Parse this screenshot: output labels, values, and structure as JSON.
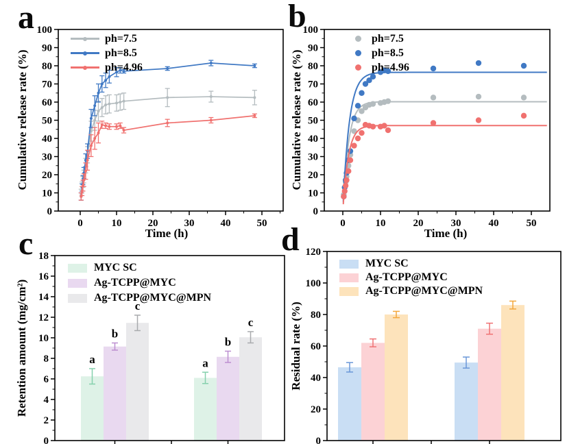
{
  "figure": {
    "background": "#ffffff"
  },
  "chart_data": [
    {
      "panel": "a",
      "type": "line",
      "xlabel": "Time (h)",
      "ylabel": "Cumulative release rate (%)",
      "xlim": [
        0,
        50
      ],
      "ylim": [
        0,
        100
      ],
      "xticks": [
        0,
        10,
        20,
        30,
        40,
        50
      ],
      "yticks": [
        0,
        10,
        20,
        30,
        40,
        50,
        60,
        70,
        80,
        90,
        100
      ],
      "legend_position": "top-left",
      "grid": false,
      "x": [
        0.25,
        0.5,
        0.75,
        1,
        1.5,
        2,
        3,
        4,
        5,
        6,
        7,
        8,
        10,
        11,
        12,
        24,
        36,
        48
      ],
      "series": [
        {
          "name": "ph=7.5",
          "color": "#b4bcbf",
          "values": [
            9,
            13,
            16,
            19,
            25,
            31,
            44,
            50,
            55,
            57,
            58.5,
            59,
            59.5,
            60,
            60.5,
            62.5,
            63,
            62.5
          ],
          "errors": [
            3,
            3,
            3,
            3.5,
            4,
            4.5,
            5.5,
            5.5,
            5.5,
            5,
            5,
            5,
            4.5,
            4.5,
            4.5,
            5,
            3,
            4
          ]
        },
        {
          "name": "ph=8.5",
          "color": "#4079c4",
          "values": [
            8,
            13,
            17,
            21,
            28,
            33,
            51,
            58,
            65,
            70,
            72,
            74,
            76.5,
            77.5,
            77,
            78.5,
            81.5,
            80
          ],
          "errors": [
            2,
            2,
            2.5,
            3,
            3.5,
            4,
            5,
            5.5,
            5,
            4.5,
            4,
            3.5,
            2.5,
            1.5,
            1,
            1,
            1.5,
            1
          ]
        },
        {
          "name": "ph=4.96",
          "color": "#f0716f",
          "values": [
            8,
            11,
            14,
            17,
            22,
            28,
            36,
            40,
            43,
            47.5,
            47,
            46.5,
            46.5,
            47,
            44.5,
            48.5,
            50,
            52.5
          ],
          "errors": [
            2,
            2.5,
            3,
            3.5,
            4.5,
            5.5,
            6,
            6,
            5.5,
            2,
            1.5,
            1.5,
            1.5,
            1.5,
            1.5,
            2,
            1.5,
            1
          ]
        }
      ]
    },
    {
      "panel": "b",
      "type": "scatter",
      "xlabel": "Time (h)",
      "ylabel": "Cumulative release rate (%)",
      "xlim": [
        0,
        50
      ],
      "ylim": [
        0,
        100
      ],
      "xticks": [
        0,
        10,
        20,
        30,
        40,
        50
      ],
      "yticks": [
        0,
        10,
        20,
        30,
        40,
        50,
        60,
        70,
        80,
        90,
        100
      ],
      "legend_position": "top-left",
      "grid": false,
      "x": [
        0.25,
        0.5,
        0.75,
        1,
        1.5,
        2,
        3,
        4,
        5,
        6,
        7,
        8,
        10,
        11,
        12,
        24,
        36,
        48
      ],
      "series": [
        {
          "name": "ph=7.5",
          "color": "#b4bcbf",
          "values": [
            9,
            13,
            16,
            19,
            25,
            31,
            44,
            50,
            55,
            57,
            58.5,
            59,
            59.5,
            60,
            60.5,
            62.5,
            63,
            62.5
          ],
          "fit": {
            "plateau": 60.2,
            "tau": 1.55
          }
        },
        {
          "name": "ph=8.5",
          "color": "#4079c4",
          "values": [
            8,
            13,
            17,
            21,
            28,
            33,
            51,
            58,
            65,
            70,
            72,
            74,
            76.5,
            77.5,
            77,
            78.5,
            81.5,
            80
          ],
          "fit": {
            "plateau": 76.4,
            "tau": 1.7
          }
        },
        {
          "name": "ph=4.96",
          "color": "#f0716f",
          "values": [
            8,
            11,
            14,
            17,
            22,
            28,
            36,
            40,
            43,
            47.5,
            47,
            46.5,
            46.5,
            47,
            44.5,
            48.5,
            50,
            52.5
          ],
          "fit": {
            "plateau": 47.1,
            "tau": 1.45
          }
        }
      ]
    },
    {
      "panel": "c",
      "type": "bar",
      "ylabel": "Retention amount (mg/cm²)",
      "ylim": [
        0,
        18
      ],
      "yticks": [
        0,
        2,
        4,
        6,
        8,
        10,
        12,
        14,
        16,
        18
      ],
      "legend_position": "top-left",
      "grid": false,
      "categories": [
        "",
        ""
      ],
      "series": [
        {
          "name": "MYC SC",
          "fill": "#def2e7",
          "err_color": "#85d0ad",
          "values": [
            6.25,
            6.1
          ],
          "errors": [
            0.75,
            0.55
          ],
          "letters": [
            "a",
            "a"
          ]
        },
        {
          "name": "Ag-TCPP@MYC",
          "fill": "#e9d9f0",
          "err_color": "#bd8ed0",
          "values": [
            9.15,
            8.15
          ],
          "errors": [
            0.35,
            0.55
          ],
          "letters": [
            "b",
            "b"
          ]
        },
        {
          "name": "Ag-TCPP@MYC@MPN",
          "fill": "#e9e9eb",
          "err_color": "#a8aaad",
          "values": [
            11.45,
            10.05
          ],
          "errors": [
            0.75,
            0.55
          ],
          "letters": [
            "c",
            "c"
          ]
        }
      ]
    },
    {
      "panel": "d",
      "type": "bar",
      "ylabel": "Residual rate (%)",
      "ylim": [
        0,
        120
      ],
      "yticks": [
        0,
        20,
        40,
        60,
        80,
        100,
        120
      ],
      "legend_position": "top-left",
      "grid": false,
      "categories": [
        "",
        ""
      ],
      "series": [
        {
          "name": "MYC SC",
          "fill": "#c9def4",
          "err_color": "#6a97d8",
          "values": [
            46.5,
            49.5
          ],
          "errors": [
            3,
            3.5
          ]
        },
        {
          "name": "Ag-TCPP@MYC",
          "fill": "#fcd2d5",
          "err_color": "#ef7274",
          "values": [
            62,
            71
          ],
          "errors": [
            2.5,
            3.5
          ]
        },
        {
          "name": "Ag-TCPP@MYC@MPN",
          "fill": "#fde3bb",
          "err_color": "#f3a73c",
          "values": [
            80,
            86
          ],
          "errors": [
            2,
            2.5
          ]
        }
      ]
    }
  ]
}
